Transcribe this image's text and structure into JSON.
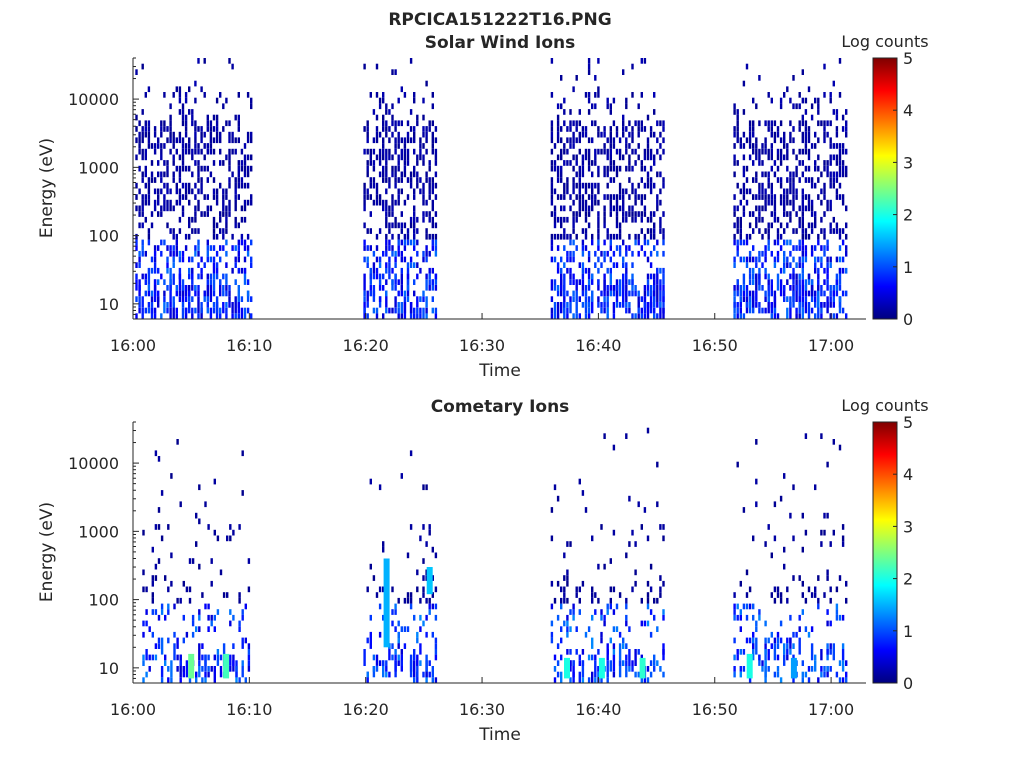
{
  "figure": {
    "title": "RPCICA151222T16.PNG"
  },
  "colormap": {
    "stops": [
      "#00007f",
      "#0000ff",
      "#007fff",
      "#00ffff",
      "#7fff7f",
      "#ffff00",
      "#ff7f00",
      "#ff0000",
      "#7f0000"
    ]
  },
  "chart_data": [
    {
      "type": "heatmap",
      "title": "Solar Wind Ions",
      "xlabel": "Time",
      "ylabel": "Energy (eV)",
      "x_ticks": [
        "16:00",
        "16:10",
        "16:20",
        "16:30",
        "16:40",
        "16:50",
        "17:00"
      ],
      "x_tick_minutes": [
        0,
        10,
        20,
        30,
        40,
        50,
        60
      ],
      "xlim_minutes": [
        0,
        63
      ],
      "y_scale": "log",
      "y_ticks": [
        "10",
        "100",
        "1000",
        "10000"
      ],
      "y_tick_values": [
        10,
        100,
        1000,
        10000
      ],
      "ylim": [
        6,
        40000
      ],
      "colorbar": {
        "label": "Log counts",
        "ticks": [
          "0",
          "1",
          "2",
          "3",
          "4",
          "5"
        ],
        "range": [
          0,
          5
        ]
      },
      "observation_intervals_minutes": [
        [
          0.2,
          10.1
        ],
        [
          19.8,
          26.1
        ],
        [
          35.9,
          45.6
        ],
        [
          51.6,
          61.3
        ]
      ],
      "typical_log_counts": {
        "high_energy": 0.2,
        "low_energy": 0.9
      },
      "seed": 11
    },
    {
      "type": "heatmap",
      "title": "Cometary Ions",
      "xlabel": "Time",
      "ylabel": "Energy (eV)",
      "x_ticks": [
        "16:00",
        "16:10",
        "16:20",
        "16:30",
        "16:40",
        "16:50",
        "17:00"
      ],
      "x_tick_minutes": [
        0,
        10,
        20,
        30,
        40,
        50,
        60
      ],
      "xlim_minutes": [
        0,
        63
      ],
      "y_scale": "log",
      "y_ticks": [
        "10",
        "100",
        "1000",
        "10000"
      ],
      "y_tick_values": [
        10,
        100,
        1000,
        10000
      ],
      "ylim": [
        6,
        40000
      ],
      "colorbar": {
        "label": "Log counts",
        "ticks": [
          "0",
          "1",
          "2",
          "3",
          "4",
          "5"
        ],
        "range": [
          0,
          5
        ]
      },
      "observation_intervals_minutes": [
        [
          0.8,
          10.1
        ],
        [
          19.8,
          26.1
        ],
        [
          35.9,
          45.6
        ],
        [
          51.6,
          61.3
        ]
      ],
      "bright_features": [
        {
          "minute": 5.0,
          "energy_min": 7,
          "energy_max": 16,
          "log_counts": 2.4
        },
        {
          "minute": 8.0,
          "energy_min": 7,
          "energy_max": 16,
          "log_counts": 2.2
        },
        {
          "minute": 21.8,
          "energy_min": 20,
          "energy_max": 400,
          "log_counts": 1.5
        },
        {
          "minute": 25.5,
          "energy_min": 120,
          "energy_max": 300,
          "log_counts": 1.6
        },
        {
          "minute": 37.3,
          "energy_min": 7,
          "energy_max": 14,
          "log_counts": 2.0
        },
        {
          "minute": 40.3,
          "energy_min": 7,
          "energy_max": 14,
          "log_counts": 2.0
        },
        {
          "minute": 43.8,
          "energy_min": 7,
          "energy_max": 14,
          "log_counts": 2.1
        },
        {
          "minute": 53.0,
          "energy_min": 7,
          "energy_max": 16,
          "log_counts": 2.0
        },
        {
          "minute": 56.8,
          "energy_min": 7,
          "energy_max": 14,
          "log_counts": 1.4
        }
      ],
      "typical_log_counts": {
        "high_energy": 0.15,
        "low_energy": 1.0
      },
      "seed": 29
    }
  ]
}
